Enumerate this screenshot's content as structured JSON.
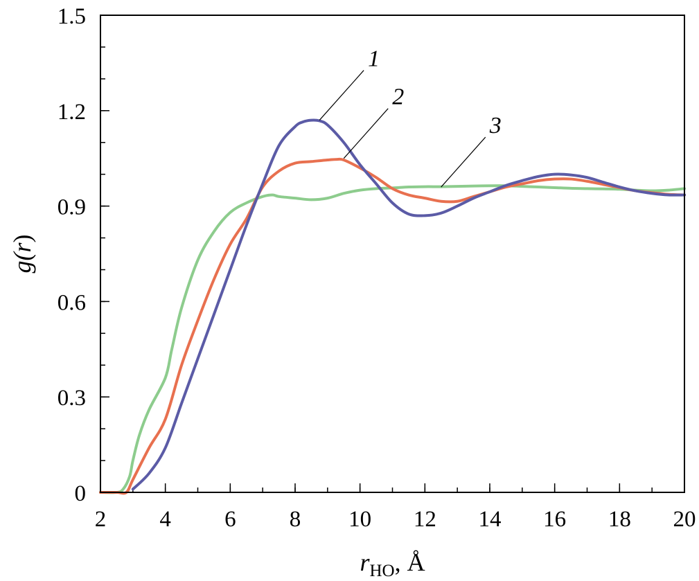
{
  "chart_data": {
    "type": "line",
    "xlabel": {
      "main": "r",
      "sub": "HO",
      "suffix": ", Å"
    },
    "ylabel": {
      "pre": "g(",
      "var": "r",
      "post": ")"
    },
    "xlim": [
      2,
      20
    ],
    "ylim": [
      0,
      1.5
    ],
    "x_ticks": [
      2,
      4,
      6,
      8,
      10,
      12,
      14,
      16,
      18,
      20
    ],
    "x_tick_labels": [
      "2",
      "4",
      "6",
      "8",
      "10",
      "12",
      "14",
      "16",
      "18",
      "20"
    ],
    "x_minor_step": 1,
    "y_ticks": [
      0,
      0.3,
      0.6,
      0.9,
      1.2,
      1.5
    ],
    "y_tick_labels": [
      "0",
      "0.3",
      "0.6",
      "0.9",
      "1.2",
      "1.5"
    ],
    "y_minor_step": 0.1,
    "grid": false,
    "series": [
      {
        "name": "1",
        "color": "#5b5ba6",
        "label_anchor": [
          8.75,
          1.17
        ],
        "x": [
          3.0,
          3.5,
          4.0,
          4.5,
          5.0,
          5.5,
          6.0,
          6.5,
          7.0,
          7.5,
          8.0,
          8.25,
          8.5,
          8.75,
          9.0,
          9.5,
          10.0,
          10.5,
          11.0,
          11.5,
          12.0,
          12.5,
          13.0,
          13.5,
          14.0,
          14.5,
          15.0,
          15.5,
          16.0,
          16.5,
          17.0,
          17.5,
          18.0,
          18.5,
          19.0,
          19.5,
          20.0
        ],
        "y": [
          0.01,
          0.06,
          0.14,
          0.28,
          0.42,
          0.56,
          0.7,
          0.84,
          0.97,
          1.09,
          1.15,
          1.165,
          1.17,
          1.168,
          1.155,
          1.1,
          1.03,
          0.97,
          0.91,
          0.875,
          0.87,
          0.878,
          0.9,
          0.925,
          0.945,
          0.965,
          0.98,
          0.993,
          1.0,
          0.998,
          0.99,
          0.975,
          0.96,
          0.948,
          0.94,
          0.935,
          0.935
        ]
      },
      {
        "name": "2",
        "color": "#e8704f",
        "label_anchor": [
          9.5,
          1.05
        ],
        "x": [
          2.0,
          2.5,
          2.8,
          3.0,
          3.5,
          4.0,
          4.5,
          5.0,
          5.5,
          6.0,
          6.5,
          7.0,
          7.5,
          8.0,
          8.5,
          9.0,
          9.3,
          9.5,
          10.0,
          10.5,
          11.0,
          11.5,
          12.0,
          12.5,
          13.0,
          13.5,
          14.0,
          14.5,
          15.0,
          15.5,
          16.0,
          16.5,
          17.0,
          17.5,
          18.0,
          18.5,
          19.0,
          19.5,
          20.0
        ],
        "y": [
          0.0,
          0.0,
          0.0,
          0.04,
          0.14,
          0.23,
          0.4,
          0.54,
          0.67,
          0.78,
          0.86,
          0.96,
          1.01,
          1.035,
          1.04,
          1.045,
          1.047,
          1.045,
          1.02,
          0.99,
          0.955,
          0.935,
          0.925,
          0.915,
          0.915,
          0.93,
          0.945,
          0.96,
          0.97,
          0.98,
          0.985,
          0.985,
          0.978,
          0.968,
          0.958,
          0.948,
          0.942,
          0.937,
          0.935
        ]
      },
      {
        "name": "3",
        "color": "#8dcc8d",
        "label_anchor": [
          12.5,
          0.96
        ],
        "x": [
          2.0,
          2.5,
          2.7,
          2.9,
          3.0,
          3.2,
          3.5,
          4.0,
          4.2,
          4.5,
          5.0,
          5.5,
          6.0,
          6.5,
          7.0,
          7.3,
          7.5,
          8.0,
          8.5,
          9.0,
          9.5,
          10.0,
          10.5,
          11.0,
          11.5,
          12.0,
          12.5,
          13.0,
          13.5,
          14.0,
          14.5,
          15.0,
          15.5,
          16.0,
          16.5,
          17.0,
          17.5,
          18.0,
          18.5,
          19.0,
          19.5,
          20.0
        ],
        "y": [
          0.0,
          0.0,
          0.01,
          0.05,
          0.1,
          0.18,
          0.26,
          0.36,
          0.45,
          0.58,
          0.73,
          0.82,
          0.88,
          0.91,
          0.93,
          0.935,
          0.93,
          0.925,
          0.92,
          0.925,
          0.94,
          0.95,
          0.955,
          0.957,
          0.96,
          0.961,
          0.961,
          0.962,
          0.963,
          0.964,
          0.964,
          0.962,
          0.96,
          0.958,
          0.956,
          0.955,
          0.954,
          0.953,
          0.95,
          0.948,
          0.95,
          0.955
        ]
      }
    ]
  }
}
